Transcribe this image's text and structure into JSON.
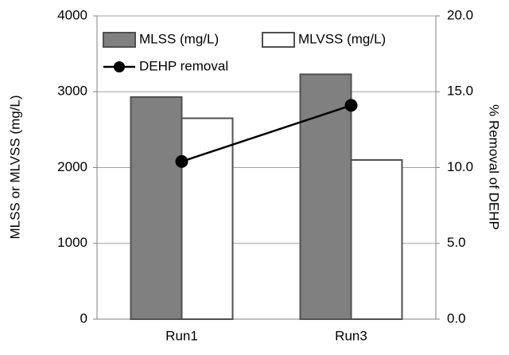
{
  "chart_data": {
    "type": "bar",
    "categories": [
      "Run1",
      "Run3"
    ],
    "series": [
      {
        "name": "MLSS (mg/L)",
        "color": "#808080",
        "values": [
          2930,
          3230
        ]
      },
      {
        "name": "MLVSS (mg/L)",
        "color": "#ffffff",
        "values": [
          2650,
          2100
        ]
      },
      {
        "name": "DEHP removal",
        "color": "#000000",
        "values": [
          10.4,
          14.1
        ],
        "axis": "y2",
        "type": "line"
      }
    ],
    "y_label": "MLSS or MLVSS (mg/L)",
    "y2_label": "% Removal  of DEHP",
    "ylim": [
      0,
      4000
    ],
    "yticks": [
      0,
      1000,
      2000,
      3000,
      4000
    ],
    "y2lim": [
      0,
      20
    ],
    "y2ticks": [
      {
        "value": 0,
        "label": "0.0"
      },
      {
        "value": 5,
        "label": "5.0"
      },
      {
        "value": 10,
        "label": "10.0"
      },
      {
        "value": 15,
        "label": "15.0"
      },
      {
        "value": 20,
        "label": "20.0"
      }
    ],
    "grid": true,
    "legend": "top"
  }
}
